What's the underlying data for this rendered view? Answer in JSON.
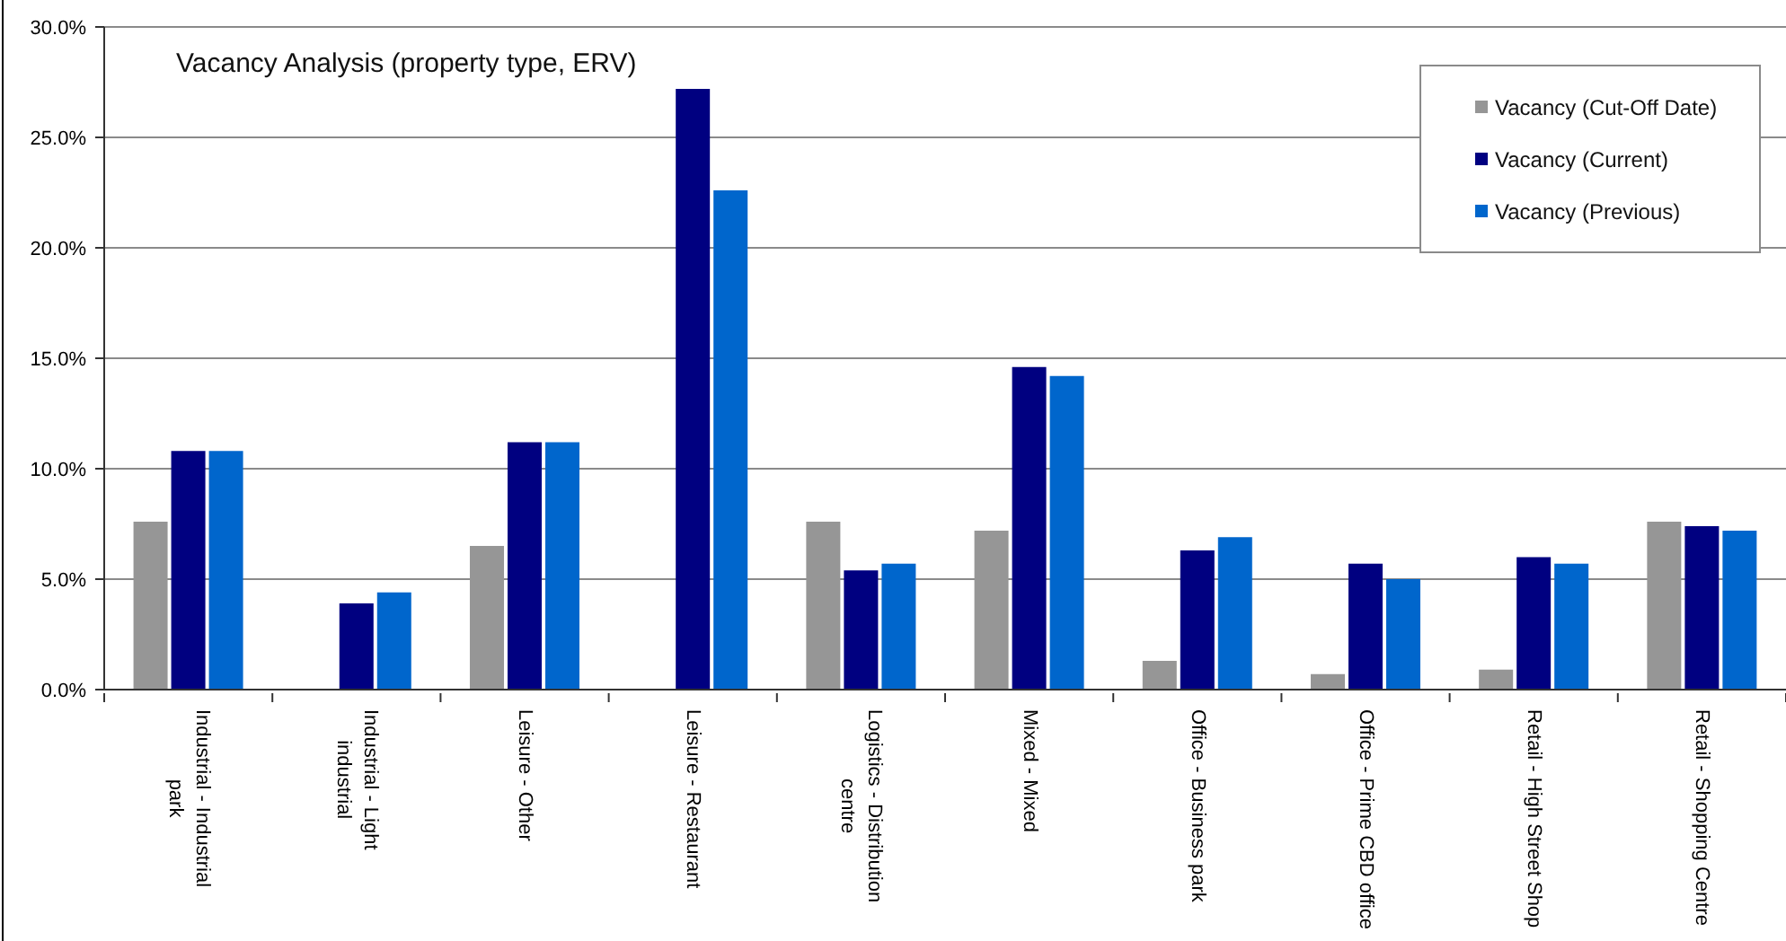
{
  "chart_data": {
    "type": "bar",
    "title": "Vacancy Analysis (property type, ERV)",
    "categories": [
      "Industrial - Industrial park",
      "Industrial - Light industrial",
      "Leisure - Other",
      "Leisure - Restaurant",
      "Logistics - Distribution centre",
      "Mixed - Mixed",
      "Office - Business park",
      "Office - Prime CBD office",
      "Retail - High Street Shop",
      "Retail - Shopping Centre"
    ],
    "series": [
      {
        "name": "Vacancy (Cut-Off Date)",
        "color": "#969696",
        "values": [
          7.6,
          null,
          6.5,
          null,
          7.6,
          7.2,
          1.3,
          0.7,
          0.9,
          7.6
        ]
      },
      {
        "name": "Vacancy (Current)",
        "color": "#000080",
        "values": [
          10.8,
          3.9,
          11.2,
          27.2,
          5.4,
          14.6,
          6.3,
          5.7,
          6.0,
          7.4
        ]
      },
      {
        "name": "Vacancy (Previous)",
        "color": "#0066cc",
        "values": [
          10.8,
          4.4,
          11.2,
          22.6,
          5.7,
          14.2,
          6.9,
          5.0,
          5.7,
          7.2
        ]
      }
    ],
    "ylim": [
      0,
      30
    ],
    "yticks": [
      {
        "value": 0,
        "label": "0.0%"
      },
      {
        "value": 5,
        "label": "5.0%"
      },
      {
        "value": 10,
        "label": "10.0%"
      },
      {
        "value": 15,
        "label": "15.0%"
      },
      {
        "value": 20,
        "label": "20.0%"
      },
      {
        "value": 25,
        "label": "25.0%"
      },
      {
        "value": 30,
        "label": "30.0%"
      }
    ],
    "grid": "y",
    "legend": "top right"
  }
}
